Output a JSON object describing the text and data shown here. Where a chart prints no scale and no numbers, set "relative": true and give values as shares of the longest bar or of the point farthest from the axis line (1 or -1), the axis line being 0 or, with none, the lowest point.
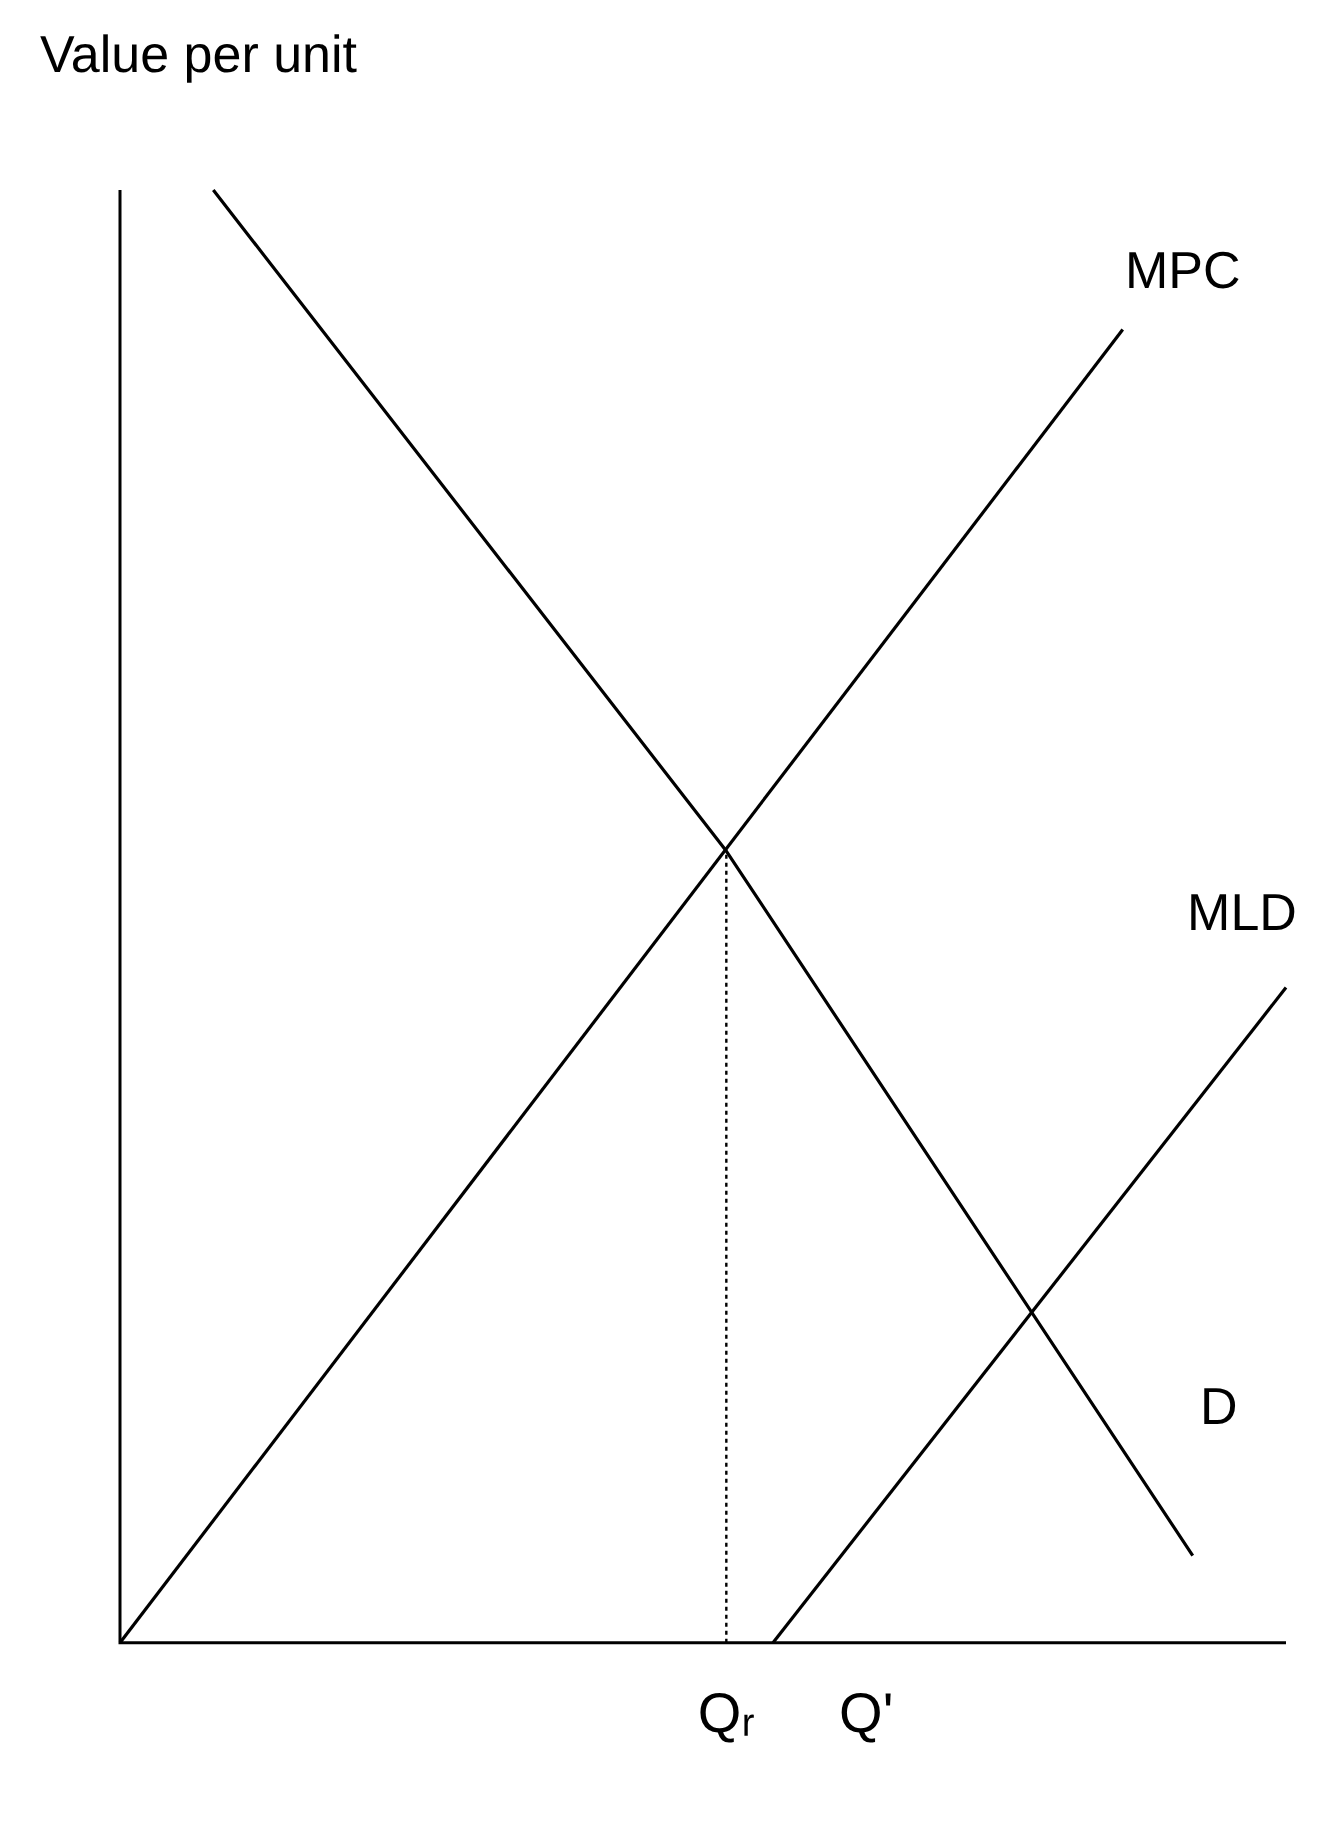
{
  "chart_data": {
    "type": "line",
    "relative": true,
    "ylabel": "Value per unit",
    "tick_labels": "x",
    "grid": false,
    "legend": false,
    "marker": "none",
    "line_style": "solid",
    "categories": [
      null,
      null,
      null,
      null,
      null,
      null,
      null,
      null,
      null,
      null,
      null,
      null,
      null,
      null,
      null,
      null,
      null,
      null,
      null,
      null,
      null,
      null,
      null,
      null,
      null,
      null,
      "Qᵣ",
      null,
      null,
      null,
      null,
      null,
      "Q'",
      null,
      null,
      null,
      null,
      null,
      null,
      null,
      null,
      null,
      null,
      null,
      null,
      null,
      null,
      null,
      null,
      null,
      null
    ],
    "series": [
      {
        "name": "MPC",
        "color": "#000000",
        "values": [
          0,
          null,
          null,
          null,
          null,
          null,
          null,
          null,
          null,
          null,
          null,
          null,
          null,
          null,
          null,
          null,
          null,
          null,
          null,
          null,
          null,
          null,
          null,
          null,
          null,
          null,
          null,
          null,
          null,
          null,
          null,
          null,
          null,
          null,
          null,
          null,
          null,
          null,
          null,
          null,
          null,
          null,
          null,
          0.904,
          null,
          null,
          null,
          null,
          null,
          null,
          null
        ]
      },
      {
        "name": "MLD",
        "color": "#000000",
        "values": [
          null,
          null,
          null,
          null,
          null,
          null,
          null,
          null,
          null,
          null,
          null,
          null,
          null,
          null,
          null,
          null,
          null,
          null,
          null,
          null,
          null,
          null,
          null,
          null,
          null,
          null,
          null,
          null,
          0,
          null,
          null,
          null,
          null,
          null,
          null,
          null,
          null,
          null,
          null,
          null,
          null,
          null,
          null,
          null,
          null,
          null,
          null,
          null,
          null,
          null,
          0.451
        ]
      },
      {
        "name": "D",
        "color": "#000000",
        "values": [
          null,
          null,
          null,
          null,
          1,
          null,
          null,
          null,
          null,
          null,
          null,
          null,
          null,
          null,
          null,
          null,
          null,
          null,
          null,
          null,
          null,
          null,
          null,
          null,
          null,
          null,
          0.545,
          null,
          null,
          null,
          null,
          null,
          null,
          null,
          null,
          null,
          null,
          null,
          null,
          null,
          null,
          null,
          null,
          null,
          null,
          null,
          0.06,
          null,
          null,
          null,
          null
        ]
      },
      {
        "color": "#000000",
        "line_style": "dotted",
        "x": [
          "Qᵣ",
          "Qᵣ"
        ],
        "values": [
          0,
          0.545
        ]
      }
    ]
  }
}
